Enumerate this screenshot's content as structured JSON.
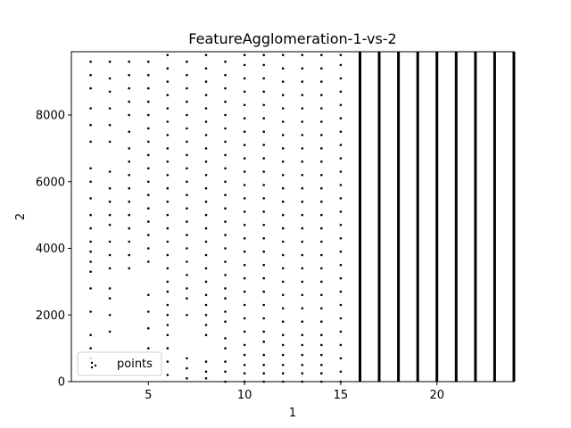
{
  "chart_data": {
    "type": "scatter",
    "title": "FeatureAgglomeration-1-vs-2",
    "xlabel": "1",
    "ylabel": "2",
    "xlim": [
      1,
      24
    ],
    "ylim": [
      0,
      9900
    ],
    "xticks": [
      5,
      10,
      15,
      20
    ],
    "yticks": [
      0,
      2000,
      4000,
      6000,
      8000
    ],
    "grid": false,
    "legend": {
      "position": "lower-left",
      "entries": [
        "points"
      ]
    },
    "series": [
      {
        "name": "points",
        "color": "#000000",
        "columns": [
          {
            "x": 2,
            "y_values": [
              700,
              1000,
              1400,
              2100,
              2800,
              3300,
              3600,
              3900,
              4200,
              4600,
              5000,
              5500,
              6000,
              6400,
              7200,
              7700,
              8200,
              8800,
              9200,
              9600
            ]
          },
          {
            "x": 3,
            "y_values": [
              1500,
              2000,
              2500,
              2800,
              3400,
              3800,
              4200,
              4700,
              5000,
              5400,
              5800,
              6300,
              7200,
              7700,
              8200,
              8700,
              9100,
              9600
            ]
          },
          {
            "x": 4,
            "y_values": [
              3400,
              3800,
              4200,
              4600,
              5000,
              5400,
              5800,
              6200,
              6600,
              7000,
              7500,
              8000,
              8400,
              8800,
              9200,
              9600
            ]
          },
          {
            "x": 5,
            "y_values": [
              1000,
              1600,
              2100,
              2600,
              3600,
              4000,
              4400,
              4800,
              5200,
              5600,
              6000,
              6400,
              6800,
              7200,
              7600,
              8000,
              8400,
              8800,
              9200,
              9600
            ]
          },
          {
            "x": 6,
            "y_values": [
              200,
              600,
              1000,
              1400,
              1700,
              2000,
              2300,
              2700,
              3000,
              3400,
              3800,
              4200,
              4600,
              5000,
              5400,
              5800,
              6200,
              6600,
              7000,
              7400,
              7800,
              8200,
              8600,
              9000,
              9400,
              9800
            ]
          },
          {
            "x": 7,
            "y_values": [
              100,
              400,
              700,
              2000,
              2500,
              2800,
              3200,
              3600,
              4000,
              4400,
              4800,
              5200,
              5600,
              6000,
              6400,
              6800,
              7200,
              7600,
              8000,
              8400,
              8800,
              9200,
              9600
            ]
          },
          {
            "x": 8,
            "y_values": [
              100,
              300,
              600,
              1400,
              1700,
              2000,
              2300,
              2600,
              3000,
              3400,
              3800,
              4200,
              4600,
              5000,
              5400,
              5800,
              6200,
              6600,
              7000,
              7400,
              7800,
              8200,
              8600,
              9000,
              9400,
              9800
            ]
          },
          {
            "x": 9,
            "y_values": [
              0,
              300,
              600,
              1000,
              1300,
              1800,
              2100,
              2500,
              2800,
              3200,
              3600,
              4000,
              4400,
              4800,
              5200,
              5600,
              6000,
              6400,
              6800,
              7200,
              7600,
              8000,
              8400,
              8800,
              9200,
              9600
            ]
          },
          {
            "x": 10,
            "y_values": [
              0,
              250,
              500,
              800,
              1100,
              1500,
              1900,
              2300,
              2700,
              3100,
              3500,
              3900,
              4300,
              4700,
              5100,
              5500,
              5900,
              6300,
              6700,
              7100,
              7500,
              7900,
              8300,
              8700,
              9100,
              9500,
              9800
            ]
          },
          {
            "x": 11,
            "y_values": [
              0,
              250,
              500,
              800,
              1200,
              1500,
              1900,
              2300,
              2700,
              3100,
              3500,
              3900,
              4300,
              4700,
              5100,
              5500,
              5900,
              6300,
              6700,
              7100,
              7500,
              7900,
              8300,
              8700,
              9100,
              9500,
              9800
            ]
          },
          {
            "x": 12,
            "y_values": [
              0,
              250,
              500,
              800,
              1100,
              1400,
              1800,
              2200,
              2600,
              3000,
              3400,
              3800,
              4200,
              4600,
              5000,
              5400,
              5800,
              6200,
              6600,
              7000,
              7400,
              7800,
              8200,
              8600,
              9000,
              9400,
              9800
            ]
          },
          {
            "x": 13,
            "y_values": [
              0,
              250,
              500,
              800,
              1100,
              1400,
              1800,
              2200,
              2600,
              3000,
              3400,
              3800,
              4200,
              4600,
              5000,
              5400,
              5800,
              6200,
              6600,
              7000,
              7400,
              7800,
              8200,
              8600,
              9000,
              9400,
              9800
            ]
          },
          {
            "x": 14,
            "y_values": [
              0,
              250,
              500,
              800,
              1100,
              1400,
              1800,
              2200,
              2600,
              3000,
              3400,
              3800,
              4200,
              4600,
              5000,
              5400,
              5800,
              6200,
              6600,
              7000,
              7400,
              7800,
              8200,
              8600,
              9000,
              9400,
              9800
            ]
          },
          {
            "x": 15,
            "y_values": [
              0,
              300,
              700,
              1100,
              1500,
              1900,
              2300,
              2700,
              3100,
              3500,
              3900,
              4300,
              4700,
              5100,
              5500,
              5900,
              6300,
              6700,
              7100,
              7500,
              7900,
              8300,
              8700,
              9100,
              9500,
              9800
            ]
          }
        ],
        "dense_columns": [
          {
            "x": 16,
            "y_range": [
              0,
              9900
            ]
          },
          {
            "x": 17,
            "y_range": [
              0,
              9900
            ]
          },
          {
            "x": 18,
            "y_range": [
              0,
              9900
            ]
          },
          {
            "x": 19,
            "y_range": [
              0,
              9900
            ]
          },
          {
            "x": 20,
            "y_range": [
              0,
              9900
            ]
          },
          {
            "x": 21,
            "y_range": [
              0,
              9900
            ]
          },
          {
            "x": 22,
            "y_range": [
              0,
              9900
            ]
          },
          {
            "x": 23,
            "y_range": [
              0,
              9900
            ]
          },
          {
            "x": 24,
            "y_range": [
              0,
              9900
            ]
          }
        ]
      }
    ]
  }
}
